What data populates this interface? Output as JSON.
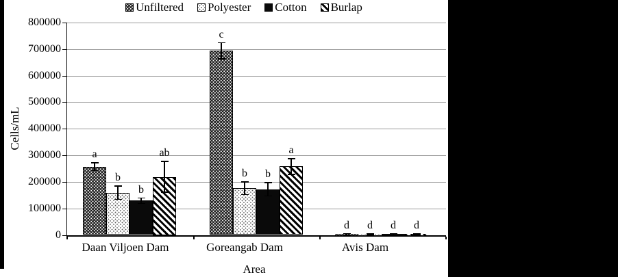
{
  "figure": {
    "background": "#ffffff",
    "scan_border_color": "#000000",
    "gridline_color": "#999999"
  },
  "chart_data": {
    "type": "bar",
    "title": "",
    "xlabel": "Area",
    "ylabel": "Cells/mL",
    "categories": [
      "Daan Viljoen Dam",
      "Goreangab Dam",
      "Avis Dam"
    ],
    "series": [
      {
        "name": "Unfiltered",
        "pattern": "black-woven-crosshatch",
        "values": [
          257000,
          694000,
          2000
        ],
        "errors": [
          15000,
          30000,
          3000
        ],
        "letters": [
          "a",
          "c",
          "d"
        ]
      },
      {
        "name": "Polyester",
        "pattern": "white-fine-dots",
        "values": [
          159000,
          176000,
          1500
        ],
        "errors": [
          25000,
          24000,
          2500
        ],
        "letters": [
          "b",
          "b",
          "d"
        ]
      },
      {
        "name": "Cotton",
        "pattern": "solid-black",
        "values": [
          129000,
          172000,
          2000
        ],
        "errors": [
          10000,
          25000,
          3000
        ],
        "letters": [
          "b",
          "b",
          "d"
        ]
      },
      {
        "name": "Burlap",
        "pattern": "diagonal-stripes",
        "values": [
          219000,
          258000,
          1500
        ],
        "errors": [
          58000,
          30000,
          2500
        ],
        "letters": [
          "ab",
          "a",
          "d"
        ]
      }
    ],
    "ylim": [
      0,
      800000
    ],
    "ytick_step": 100000,
    "ytick_labels": [
      "0",
      "100000",
      "200000",
      "300000",
      "400000",
      "500000",
      "600000",
      "700000",
      "800000"
    ],
    "grid": true,
    "legend_position": "top",
    "error_bars": true
  }
}
